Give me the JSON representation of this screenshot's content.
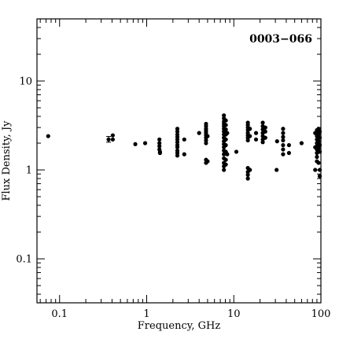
{
  "chart_data": {
    "type": "scatter",
    "title": "0003−066",
    "xlabel": "Frequency, GHz",
    "ylabel": "Flux Density, Jy",
    "x_scale": "log",
    "y_scale": "log",
    "xlim": [
      0.055,
      100
    ],
    "ylim": [
      0.032,
      50
    ],
    "x_ticks": [
      {
        "value": 0.1,
        "label": "0.1"
      },
      {
        "value": 1,
        "label": "1"
      },
      {
        "value": 10,
        "label": "10"
      },
      {
        "value": 100,
        "label": "100"
      }
    ],
    "y_ticks": [
      {
        "value": 0.1,
        "label": "0.1"
      },
      {
        "value": 1,
        "label": "1"
      },
      {
        "value": 10,
        "label": "10"
      }
    ],
    "grid": false,
    "legend": "none",
    "marker_color": "#000000",
    "series": [
      {
        "points": [
          [
            0.074,
            2.4
          ],
          [
            0.365,
            2.2
          ],
          [
            0.408,
            2.45
          ],
          [
            0.408,
            2.2
          ],
          [
            0.74,
            1.95
          ],
          [
            0.96,
            2.0
          ],
          [
            1.4,
            2.2
          ],
          [
            1.4,
            2.0
          ],
          [
            1.4,
            1.85
          ],
          [
            1.4,
            1.7
          ],
          [
            1.42,
            1.6
          ],
          [
            1.42,
            1.55
          ],
          [
            2.25,
            2.9
          ],
          [
            2.25,
            2.7
          ],
          [
            2.25,
            2.5
          ],
          [
            2.25,
            2.35
          ],
          [
            2.25,
            2.2
          ],
          [
            2.25,
            2.05
          ],
          [
            2.25,
            1.9
          ],
          [
            2.25,
            1.8
          ],
          [
            2.25,
            1.65
          ],
          [
            2.25,
            1.55
          ],
          [
            2.25,
            1.45
          ],
          [
            2.7,
            2.2
          ],
          [
            2.7,
            1.5
          ],
          [
            4.0,
            2.6
          ],
          [
            4.8,
            3.3
          ],
          [
            4.8,
            3.1
          ],
          [
            4.8,
            2.9
          ],
          [
            4.8,
            2.75
          ],
          [
            4.8,
            2.6
          ],
          [
            4.8,
            2.45
          ],
          [
            4.8,
            2.3
          ],
          [
            4.8,
            2.15
          ],
          [
            4.8,
            2.0
          ],
          [
            4.8,
            1.3
          ],
          [
            4.8,
            1.2
          ],
          [
            5.0,
            2.4
          ],
          [
            5.0,
            1.25
          ],
          [
            7.7,
            4.1
          ],
          [
            7.7,
            3.8
          ],
          [
            7.7,
            3.5
          ],
          [
            7.7,
            3.3
          ],
          [
            7.7,
            3.1
          ],
          [
            7.7,
            2.9
          ],
          [
            7.7,
            2.7
          ],
          [
            7.7,
            2.5
          ],
          [
            7.7,
            2.3
          ],
          [
            7.7,
            2.1
          ],
          [
            7.7,
            1.95
          ],
          [
            7.7,
            1.8
          ],
          [
            7.7,
            1.65
          ],
          [
            7.7,
            1.5
          ],
          [
            7.7,
            1.35
          ],
          [
            7.7,
            1.2
          ],
          [
            7.7,
            1.1
          ],
          [
            7.7,
            1.0
          ],
          [
            8.1,
            3.6
          ],
          [
            8.1,
            3.2
          ],
          [
            8.1,
            2.85
          ],
          [
            8.1,
            2.5
          ],
          [
            8.1,
            2.2
          ],
          [
            8.1,
            1.9
          ],
          [
            8.1,
            1.6
          ],
          [
            8.1,
            1.3
          ],
          [
            8.1,
            1.15
          ],
          [
            8.4,
            2.6
          ],
          [
            8.4,
            1.5
          ],
          [
            10.7,
            1.6
          ],
          [
            14.5,
            3.4
          ],
          [
            14.5,
            3.2
          ],
          [
            14.5,
            3.0
          ],
          [
            14.5,
            2.8
          ],
          [
            14.5,
            2.6
          ],
          [
            14.5,
            2.45
          ],
          [
            14.5,
            2.3
          ],
          [
            14.5,
            2.15
          ],
          [
            14.5,
            1.05
          ],
          [
            14.5,
            0.95
          ],
          [
            14.5,
            0.88
          ],
          [
            14.5,
            0.8
          ],
          [
            15.3,
            2.9
          ],
          [
            15.3,
            2.4
          ],
          [
            15.3,
            1.0
          ],
          [
            18.0,
            2.6
          ],
          [
            18.0,
            2.2
          ],
          [
            21.5,
            3.4
          ],
          [
            21.5,
            3.1
          ],
          [
            21.5,
            2.85
          ],
          [
            21.5,
            2.6
          ],
          [
            21.5,
            2.4
          ],
          [
            21.5,
            2.2
          ],
          [
            21.5,
            2.05
          ],
          [
            23.0,
            3.0
          ],
          [
            23.0,
            2.7
          ],
          [
            23.0,
            2.3
          ],
          [
            31.0,
            1.0
          ],
          [
            31.4,
            2.1
          ],
          [
            36.8,
            2.9
          ],
          [
            36.8,
            2.6
          ],
          [
            36.8,
            2.35
          ],
          [
            36.8,
            2.15
          ],
          [
            36.8,
            1.9
          ],
          [
            36.8,
            1.7
          ],
          [
            36.8,
            1.5
          ],
          [
            43.0,
            1.9
          ],
          [
            43.0,
            1.55
          ],
          [
            60.0,
            2.0
          ],
          [
            86.0,
            2.6
          ],
          [
            86.0,
            1.8
          ],
          [
            86.0,
            1.0
          ],
          [
            90.0,
            2.8
          ],
          [
            90.0,
            2.6
          ],
          [
            90.0,
            2.4
          ],
          [
            90.0,
            2.2
          ],
          [
            90.0,
            2.0
          ],
          [
            90.0,
            1.85
          ],
          [
            90.0,
            1.7
          ],
          [
            90.0,
            1.55
          ],
          [
            90.0,
            1.4
          ],
          [
            90.0,
            1.25
          ],
          [
            94.0,
            2.9
          ],
          [
            94.0,
            2.5
          ],
          [
            94.0,
            2.1
          ],
          [
            94.0,
            1.75
          ],
          [
            94.0,
            1.2
          ],
          [
            97.0,
            2.7
          ],
          [
            97.0,
            2.3
          ],
          [
            97.0,
            1.9
          ],
          [
            97.0,
            1.6
          ],
          [
            97.0,
            1.0
          ],
          [
            97.0,
            0.85
          ]
        ],
        "error_bars": [
          {
            "x": 0.365,
            "y": 2.2,
            "ylow": 2.05,
            "yhigh": 2.38
          }
        ]
      }
    ]
  }
}
